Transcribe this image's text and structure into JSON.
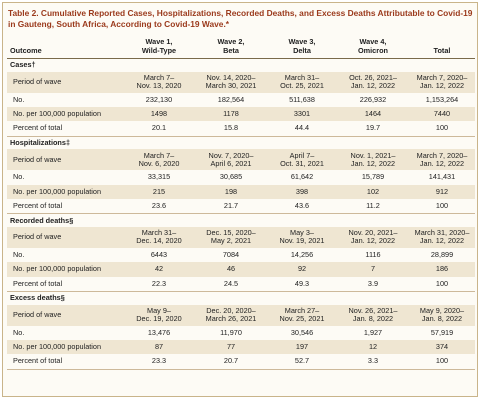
{
  "title": "Table 2. Cumulative Reported Cases, Hospitalizations, Recorded Deaths, and Excess Deaths Attributable to Covid-19 in Gauteng, South Africa, According to Covid-19 Wave.*",
  "headers": {
    "outcome": "Outcome",
    "wave1": "Wave 1,\nWild-Type",
    "wave2": "Wave 2,\nBeta",
    "wave3": "Wave 3,\nDelta",
    "wave4": "Wave 4,\nOmicron",
    "total": "Total"
  },
  "sections": [
    {
      "title": "Cases†",
      "rows": [
        {
          "label": "Period of wave",
          "values": [
            "March 7–\nNov. 13, 2020",
            "Nov. 14, 2020–\nMarch 30, 2021",
            "March 31–\nOct. 25, 2021",
            "Oct. 26, 2021–\nJan. 12, 2022",
            "March 7, 2020–\nJan. 12, 2022"
          ]
        },
        {
          "label": "No.",
          "values": [
            "232,130",
            "182,564",
            "511,638",
            "226,932",
            "1,153,264"
          ]
        },
        {
          "label": "No. per 100,000 population",
          "values": [
            "1498",
            "1178",
            "3301",
            "1464",
            "7440"
          ]
        },
        {
          "label": "Percent of total",
          "values": [
            "20.1",
            "15.8",
            "44.4",
            "19.7",
            "100"
          ]
        }
      ]
    },
    {
      "title": "Hospitalizations‡",
      "rows": [
        {
          "label": "Period of wave",
          "values": [
            "March 7–\nNov. 6, 2020",
            "Nov. 7, 2020–\nApril 6, 2021",
            "April 7–\nOct. 31, 2021",
            "Nov. 1, 2021–\nJan. 12, 2022",
            "March 7, 2020–\nJan. 12, 2022"
          ]
        },
        {
          "label": "No.",
          "values": [
            "33,315",
            "30,685",
            "61,642",
            "15,789",
            "141,431"
          ]
        },
        {
          "label": "No. per 100,000 population",
          "values": [
            "215",
            "198",
            "398",
            "102",
            "912"
          ]
        },
        {
          "label": "Percent of total",
          "values": [
            "23.6",
            "21.7",
            "43.6",
            "11.2",
            "100"
          ]
        }
      ]
    },
    {
      "title": "Recorded deaths§",
      "rows": [
        {
          "label": "Period of wave",
          "values": [
            "March 31–\nDec. 14, 2020",
            "Dec. 15, 2020–\nMay 2, 2021",
            "May 3–\nNov. 19, 2021",
            "Nov. 20, 2021–\nJan. 12, 2022",
            "March 31, 2020–\nJan. 12, 2022"
          ]
        },
        {
          "label": "No.",
          "values": [
            "6443",
            "7084",
            "14,256",
            "1116",
            "28,899"
          ]
        },
        {
          "label": "No. per 100,000 population",
          "values": [
            "42",
            "46",
            "92",
            "7",
            "186"
          ]
        },
        {
          "label": "Percent of total",
          "values": [
            "22.3",
            "24.5",
            "49.3",
            "3.9",
            "100"
          ]
        }
      ]
    },
    {
      "title": "Excess deaths§",
      "rows": [
        {
          "label": "Period of wave",
          "values": [
            "May 9–\nDec. 19, 2020",
            "Dec. 20, 2020–\nMarch 26, 2021",
            "March 27–\nNov. 25, 2021",
            "Nov. 26, 2021–\nJan. 8, 2022",
            "May 9, 2020–\nJan. 8, 2022"
          ]
        },
        {
          "label": "No.",
          "values": [
            "13,476",
            "11,970",
            "30,546",
            "1,927",
            "57,919"
          ]
        },
        {
          "label": "No. per 100,000 population",
          "values": [
            "87",
            "77",
            "197",
            "12",
            "374"
          ]
        },
        {
          "label": "Percent of total",
          "values": [
            "23.3",
            "20.7",
            "52.7",
            "3.3",
            "100"
          ]
        }
      ]
    }
  ],
  "colors": {
    "title": "#9b3a1c",
    "shade": "#efe6d2",
    "border": "#c9b48a"
  }
}
